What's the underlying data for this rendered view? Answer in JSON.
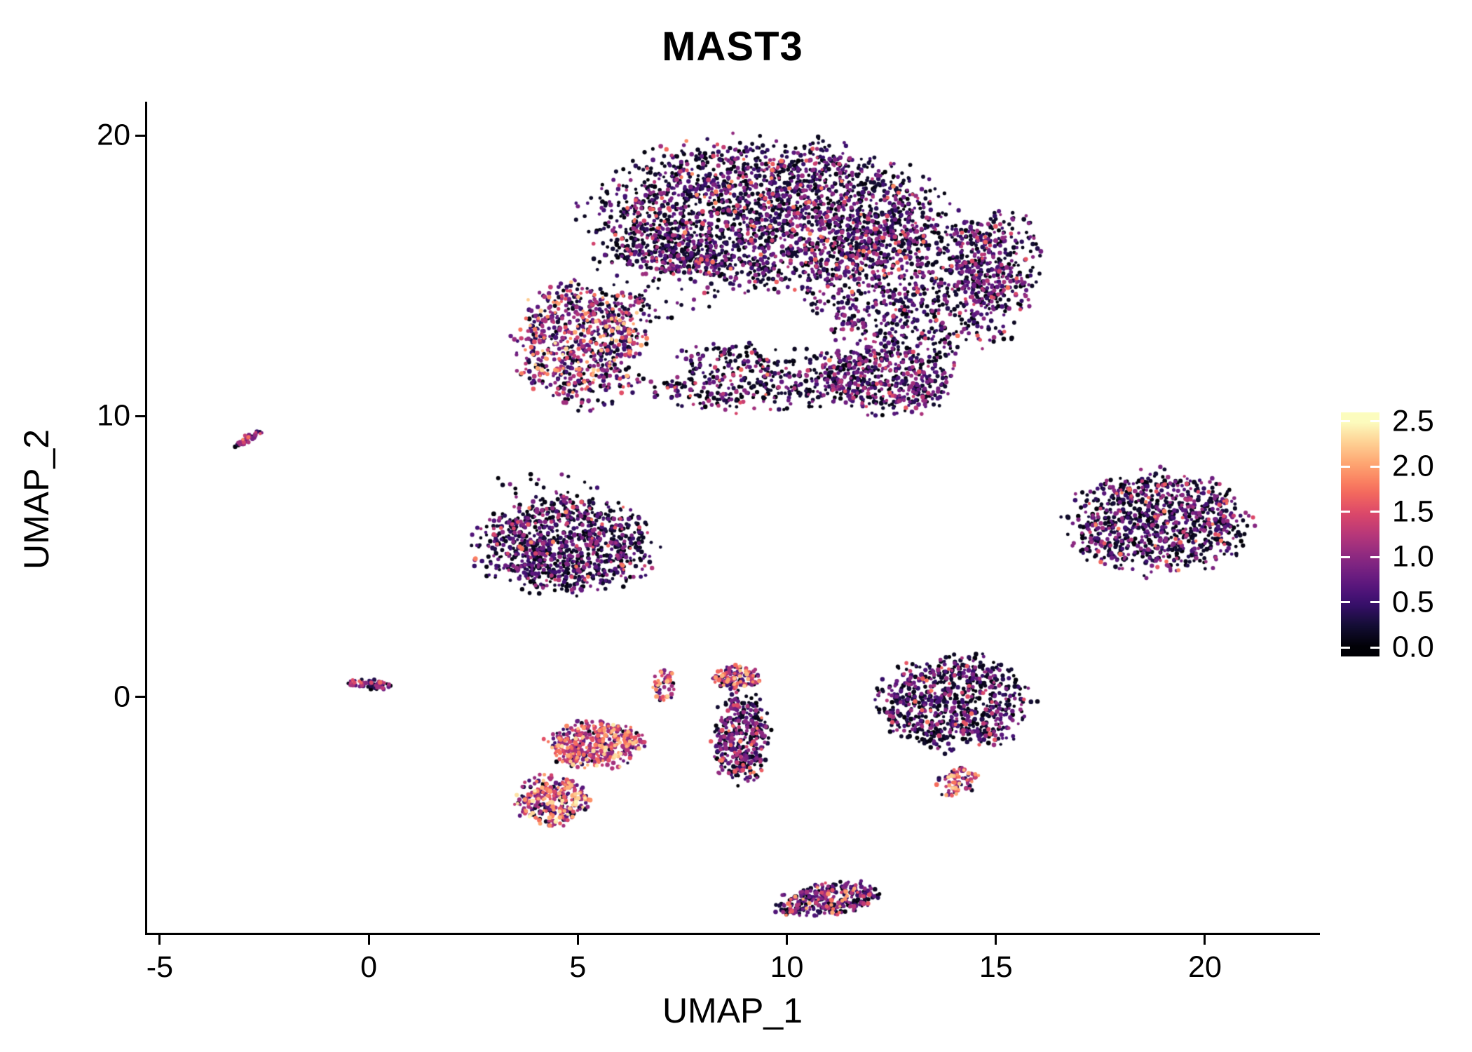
{
  "chart_data": {
    "type": "scatter",
    "title": "MAST3",
    "xlabel": "UMAP_1",
    "ylabel": "UMAP_2",
    "xlim": [
      -5.3,
      22.7
    ],
    "ylim": [
      -8.4,
      21.2
    ],
    "x_ticks": [
      {
        "v": -5,
        "label": "-5"
      },
      {
        "v": 0,
        "label": "0"
      },
      {
        "v": 5,
        "label": "5"
      },
      {
        "v": 10,
        "label": "10"
      },
      {
        "v": 15,
        "label": "15"
      },
      {
        "v": 20,
        "label": "20"
      }
    ],
    "y_ticks": [
      {
        "v": 0,
        "label": "0"
      },
      {
        "v": 10,
        "label": "10"
      },
      {
        "v": 20,
        "label": "20"
      }
    ],
    "grid": false,
    "background": "#ffffff",
    "axis_color": "#000000",
    "legend": {
      "type": "colorbar",
      "position": "right",
      "vmin": 0,
      "vmax": 2.5,
      "bar_range": [
        -0.1,
        2.6
      ],
      "ticks": [
        {
          "v": 0.0,
          "label": "0.0"
        },
        {
          "v": 0.5,
          "label": "0.5"
        },
        {
          "v": 1.0,
          "label": "1.0"
        },
        {
          "v": 1.5,
          "label": "1.5"
        },
        {
          "v": 2.0,
          "label": "2.0"
        },
        {
          "v": 2.5,
          "label": "2.5"
        }
      ]
    },
    "colormap": {
      "name": "magma",
      "stops": [
        {
          "t": 0.0,
          "color": "#000004"
        },
        {
          "t": 0.1,
          "color": "#140e36"
        },
        {
          "t": 0.2,
          "color": "#3b0f70"
        },
        {
          "t": 0.3,
          "color": "#641a80"
        },
        {
          "t": 0.4,
          "color": "#8c2981"
        },
        {
          "t": 0.5,
          "color": "#b73779"
        },
        {
          "t": 0.6,
          "color": "#de4968"
        },
        {
          "t": 0.7,
          "color": "#f7705c"
        },
        {
          "t": 0.8,
          "color": "#fe9f6d"
        },
        {
          "t": 0.9,
          "color": "#fece91"
        },
        {
          "t": 1.0,
          "color": "#fcfdbf"
        }
      ]
    },
    "seed": 42,
    "point_radius": [
      2.1,
      3.4
    ],
    "clusters": [
      {
        "name": "top-core",
        "cx": 9.5,
        "cy": 17.2,
        "rx": 3.9,
        "ry": 2.5,
        "angle": 0,
        "n": 2300,
        "p0": 0.52,
        "pmid": 0.38,
        "vmax": 1.9
      },
      {
        "name": "top-right-mass",
        "cx": 13.1,
        "cy": 14.6,
        "rx": 2.5,
        "ry": 2.5,
        "angle": 0,
        "n": 950,
        "p0": 0.45,
        "pmid": 0.45,
        "vmax": 1.8
      },
      {
        "name": "top-far-right",
        "cx": 15.0,
        "cy": 15.5,
        "rx": 1.1,
        "ry": 1.7,
        "angle": 0,
        "n": 300,
        "p0": 0.45,
        "pmid": 0.45,
        "vmax": 1.6
      },
      {
        "name": "top-connector",
        "cx": 7.1,
        "cy": 15.2,
        "rx": 1.5,
        "ry": 1.6,
        "angle": 0,
        "n": 420,
        "p0": 0.55,
        "pmid": 0.35,
        "vmax": 1.7
      },
      {
        "name": "top-left-hot-lobe",
        "cx": 5.1,
        "cy": 12.6,
        "rx": 1.5,
        "ry": 2.1,
        "angle": 0,
        "n": 780,
        "p0": 0.28,
        "pmid": 0.38,
        "vmax": 2.35
      },
      {
        "name": "top-bottom-band",
        "cx": 9.2,
        "cy": 11.4,
        "rx": 2.6,
        "ry": 1.2,
        "angle": 0,
        "n": 480,
        "p0": 0.55,
        "pmid": 0.33,
        "vmax": 1.9
      },
      {
        "name": "top-bottomright-bump",
        "cx": 12.4,
        "cy": 11.3,
        "rx": 1.5,
        "ry": 1.2,
        "angle": 0,
        "n": 520,
        "p0": 0.35,
        "pmid": 0.52,
        "vmax": 1.6
      },
      {
        "name": "left-streak",
        "cx": -2.9,
        "cy": 9.2,
        "rx": 0.45,
        "ry": 0.12,
        "angle": 38,
        "n": 38,
        "p0": 0.15,
        "pmid": 0.4,
        "vmax": 2.0
      },
      {
        "name": "midleft-cluster",
        "cx": 4.7,
        "cy": 5.4,
        "rx": 2.0,
        "ry": 1.6,
        "angle": 0,
        "n": 1050,
        "p0": 0.55,
        "pmid": 0.35,
        "vmax": 1.9
      },
      {
        "name": "midleft-strays",
        "cx": 4.3,
        "cy": 7.5,
        "rx": 1.4,
        "ry": 0.5,
        "angle": 0,
        "n": 22,
        "p0": 0.55,
        "pmid": 0.35,
        "vmax": 1.5
      },
      {
        "name": "right-cluster",
        "cx": 18.9,
        "cy": 6.2,
        "rx": 2.0,
        "ry": 1.7,
        "angle": 0,
        "n": 950,
        "p0": 0.55,
        "pmid": 0.35,
        "vmax": 1.9
      },
      {
        "name": "tiny-left-cluster",
        "cx": 0.0,
        "cy": 0.45,
        "rx": 0.5,
        "ry": 0.18,
        "angle": -10,
        "n": 65,
        "p0": 0.25,
        "pmid": 0.45,
        "vmax": 1.7
      },
      {
        "name": "hot-upper",
        "cx": 5.4,
        "cy": -1.7,
        "rx": 1.1,
        "ry": 0.8,
        "angle": 0,
        "n": 430,
        "p0": 0.1,
        "pmid": 0.24,
        "vmax": 2.4
      },
      {
        "name": "hot-lower",
        "cx": 4.4,
        "cy": -3.7,
        "rx": 0.85,
        "ry": 0.85,
        "angle": 0,
        "n": 300,
        "p0": 0.1,
        "pmid": 0.22,
        "vmax": 2.5
      },
      {
        "name": "small-crescent",
        "cx": 7.05,
        "cy": 0.35,
        "rx": 0.27,
        "ry": 0.55,
        "angle": 0,
        "n": 55,
        "p0": 0.12,
        "pmid": 0.28,
        "vmax": 2.3
      },
      {
        "name": "hot-mid-small",
        "cx": 8.8,
        "cy": 0.7,
        "rx": 0.55,
        "ry": 0.4,
        "angle": 0,
        "n": 130,
        "p0": 0.15,
        "pmid": 0.3,
        "vmax": 2.3
      },
      {
        "name": "vertical-mixed",
        "cx": 8.9,
        "cy": -1.5,
        "rx": 0.65,
        "ry": 1.55,
        "angle": 0,
        "n": 380,
        "p0": 0.42,
        "pmid": 0.38,
        "vmax": 2.0
      },
      {
        "name": "rightmid-cluster",
        "cx": 14.0,
        "cy": -0.2,
        "rx": 1.7,
        "ry": 1.6,
        "angle": 0,
        "n": 800,
        "p0": 0.55,
        "pmid": 0.35,
        "vmax": 1.8
      },
      {
        "name": "low-crescent",
        "cx": 14.1,
        "cy": -3.0,
        "rx": 0.6,
        "ry": 0.4,
        "angle": 45,
        "n": 90,
        "p0": 0.1,
        "pmid": 0.22,
        "vmax": 2.3
      },
      {
        "name": "bottom-cluster",
        "cx": 11.0,
        "cy": -7.2,
        "rx": 1.2,
        "ry": 0.55,
        "angle": 15,
        "n": 330,
        "p0": 0.3,
        "pmid": 0.45,
        "vmax": 2.1
      }
    ],
    "holes": [
      {
        "cx": 7.7,
        "cy": 14.3,
        "rx": 1.0,
        "ry": 0.8
      },
      {
        "cx": 8.9,
        "cy": 13.2,
        "rx": 0.9,
        "ry": 0.6
      },
      {
        "cx": 10.0,
        "cy": 12.5,
        "rx": 0.8,
        "ry": 0.5
      },
      {
        "cx": 6.1,
        "cy": 14.9,
        "rx": 0.7,
        "ry": 0.5
      },
      {
        "cx": 7.0,
        "cy": 11.9,
        "rx": 0.7,
        "ry": 0.6
      }
    ]
  }
}
